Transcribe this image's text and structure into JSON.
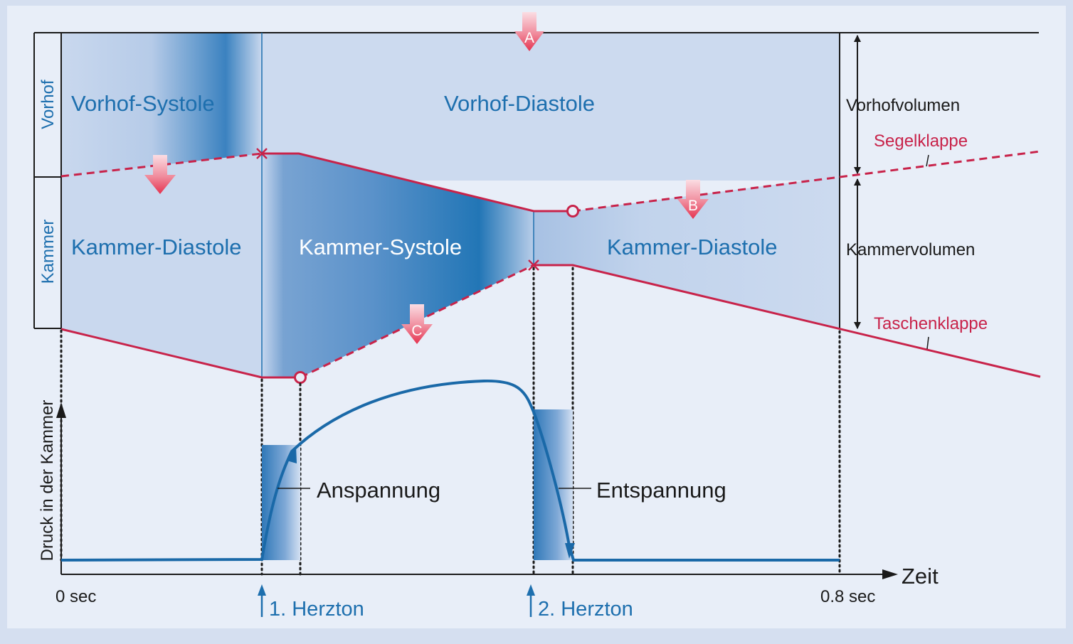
{
  "labels": {
    "vorhof_systole": "Vorhof-Systole",
    "vorhof_diastole": "Vorhof-Diastole",
    "kammer_diastole_1": "Kammer-Diastole",
    "kammer_systole": "Kammer-Systole",
    "kammer_diastole_2": "Kammer-Diastole",
    "vorhof_side": "Vorhof",
    "kammer_side": "Kammer",
    "vorhofvolumen": "Vorhofvolumen",
    "kammervolumen": "Kammervolumen",
    "segelklappe": "Segelklappe",
    "taschenklappe": "Taschenklappe",
    "anspannung": "Anspannung",
    "entspannung": "Entspannung",
    "y_axis": "Druck in der Kammer",
    "x_axis": "Zeit",
    "t_start": "0 sec",
    "t_end": "0.8 sec",
    "herzton_1": "1. Herzton",
    "herzton_2": "2. Herzton",
    "marker_a": "A",
    "marker_b": "B",
    "marker_c": "C"
  },
  "colors": {
    "blue_text": "#1d6fae",
    "valve_red": "#c8234a",
    "curve_blue": "#1a69a8",
    "deep_blue": "#2f7ab8",
    "arrow_red": "#e5324f",
    "black": "#1a1a1a"
  },
  "icons": {
    "marker_arrow": "down-arrow-icon",
    "valve_closed": "cross-icon",
    "valve_open": "circle-icon",
    "herzton_marker": "up-arrow-icon"
  }
}
